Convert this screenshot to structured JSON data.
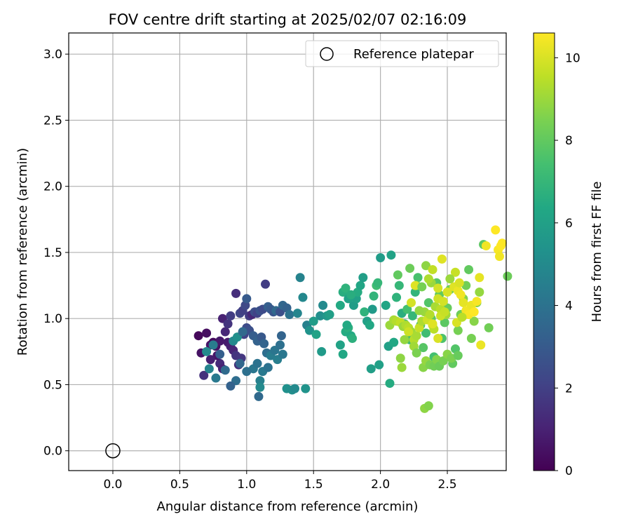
{
  "chart_data": {
    "type": "scatter",
    "title": "FOV centre drift starting at 2025/02/07 02:16:09",
    "xlabel": "Angular distance from reference (arcmin)",
    "ylabel": "Rotation from reference (arcmin)",
    "xlim": [
      -0.33,
      2.94
    ],
    "ylim": [
      -0.15,
      3.16
    ],
    "xticks": [
      "0.0",
      "0.5",
      "1.0",
      "1.5",
      "2.0",
      "2.5"
    ],
    "yticks": [
      "0.0",
      "0.5",
      "1.0",
      "1.5",
      "2.0",
      "2.5",
      "3.0"
    ],
    "grid": true,
    "legend": {
      "position": "top-right",
      "entries": [
        {
          "label": "Reference platepar",
          "marker": "open-circle"
        }
      ]
    },
    "reference_point": {
      "x": 0.0,
      "y": 0.0
    },
    "colorbar": {
      "label": "Hours from first FF file",
      "range": [
        0,
        10.6
      ],
      "ticks": [
        "0",
        "2",
        "4",
        "6",
        "8",
        "10"
      ],
      "colormap": "viridis"
    },
    "points": [
      [
        0.64,
        0.87,
        0.2
      ],
      [
        0.66,
        0.74,
        0.5
      ],
      [
        0.7,
        0.89,
        0.4
      ],
      [
        0.73,
        0.8,
        0.6
      ],
      [
        0.75,
        0.82,
        0.3
      ],
      [
        0.77,
        0.79,
        0.5
      ],
      [
        0.8,
        0.83,
        0.7
      ],
      [
        0.82,
        1.0,
        1.0
      ],
      [
        0.84,
        0.9,
        1.2
      ],
      [
        0.86,
        0.82,
        0.8
      ],
      [
        0.88,
        0.79,
        0.9
      ],
      [
        0.9,
        0.76,
        1.1
      ],
      [
        0.8,
        0.66,
        1.3
      ],
      [
        0.82,
        0.62,
        1.0
      ],
      [
        0.78,
        0.72,
        0.6
      ],
      [
        0.73,
        0.69,
        0.9
      ],
      [
        0.68,
        0.57,
        1.5
      ],
      [
        0.92,
        0.72,
        1.6
      ],
      [
        0.94,
        0.65,
        1.4
      ],
      [
        0.96,
        0.7,
        1.7
      ],
      [
        0.86,
        0.96,
        1.6
      ],
      [
        0.88,
        1.02,
        1.9
      ],
      [
        0.92,
        1.19,
        1.4
      ],
      [
        0.95,
        1.04,
        2.2
      ],
      [
        0.97,
        1.06,
        2.0
      ],
      [
        0.99,
        1.1,
        2.3
      ],
      [
        1.0,
        1.15,
        3.0
      ],
      [
        1.02,
        1.02,
        1.8
      ],
      [
        1.04,
        1.03,
        1.2
      ],
      [
        1.06,
        1.05,
        2.5
      ],
      [
        1.08,
        1.04,
        2.1
      ],
      [
        1.1,
        1.06,
        2.7
      ],
      [
        1.12,
        1.07,
        2.4
      ],
      [
        1.14,
        1.26,
        1.9
      ],
      [
        1.16,
        1.09,
        3.2
      ],
      [
        1.18,
        1.07,
        3.0
      ],
      [
        1.2,
        1.05,
        2.8
      ],
      [
        1.22,
        1.06,
        3.6
      ],
      [
        1.25,
        1.05,
        2.6
      ],
      [
        1.27,
        1.1,
        3.5
      ],
      [
        1.3,
        1.08,
        3.3
      ],
      [
        1.32,
        1.03,
        4.0
      ],
      [
        1.0,
        0.93,
        2.4
      ],
      [
        0.98,
        0.88,
        2.1
      ],
      [
        1.02,
        0.91,
        2.6
      ],
      [
        1.05,
        0.87,
        3.1
      ],
      [
        1.08,
        0.83,
        3.3
      ],
      [
        1.11,
        0.86,
        2.9
      ],
      [
        1.13,
        0.81,
        3.4
      ],
      [
        1.15,
        0.74,
        3.8
      ],
      [
        1.18,
        0.72,
        4.4
      ],
      [
        1.21,
        0.76,
        4.1
      ],
      [
        1.23,
        0.69,
        4.5
      ],
      [
        1.25,
        0.8,
        3.9
      ],
      [
        1.27,
        0.73,
        4.2
      ],
      [
        1.26,
        0.87,
        3.4
      ],
      [
        1.05,
        0.62,
        4.2
      ],
      [
        1.08,
        0.66,
        4.0
      ],
      [
        1.1,
        0.53,
        4.6
      ],
      [
        1.1,
        0.48,
        5.0
      ],
      [
        1.09,
        0.41,
        3.6
      ],
      [
        1.12,
        0.6,
        4.3
      ],
      [
        1.16,
        0.63,
        4.0
      ],
      [
        1.0,
        0.6,
        3.9
      ],
      [
        0.95,
        0.66,
        3.5
      ],
      [
        0.92,
        0.53,
        3.8
      ],
      [
        0.88,
        0.49,
        3.3
      ],
      [
        0.84,
        0.61,
        3.7
      ],
      [
        0.8,
        0.73,
        3.2
      ],
      [
        0.77,
        0.55,
        4.3
      ],
      [
        0.72,
        0.62,
        4.7
      ],
      [
        0.7,
        0.75,
        5.0
      ],
      [
        0.75,
        0.8,
        4.4
      ],
      [
        0.9,
        0.83,
        4.9
      ],
      [
        0.93,
        0.86,
        5.2
      ],
      [
        0.97,
        0.9,
        3.6
      ],
      [
        1.3,
        0.47,
        5.3
      ],
      [
        1.34,
        0.46,
        5.2
      ],
      [
        1.36,
        0.47,
        5.0
      ],
      [
        1.44,
        0.47,
        5.4
      ],
      [
        1.38,
        1.04,
        4.8
      ],
      [
        1.4,
        1.31,
        4.7
      ],
      [
        1.42,
        1.16,
        4.9
      ],
      [
        1.45,
        0.95,
        4.6
      ],
      [
        1.47,
        0.91,
        5.4
      ],
      [
        1.5,
        0.98,
        5.8
      ],
      [
        1.52,
        0.88,
        6.1
      ],
      [
        1.55,
        1.02,
        5.2
      ],
      [
        1.57,
        1.1,
        5.0
      ],
      [
        1.6,
        1.02,
        5.6
      ],
      [
        1.62,
        1.03,
        5.9
      ],
      [
        1.56,
        0.75,
        5.7
      ],
      [
        1.7,
        0.8,
        6.1
      ],
      [
        1.72,
        0.73,
        6.3
      ],
      [
        1.74,
        0.9,
        6.5
      ],
      [
        1.76,
        0.93,
        6.7
      ],
      [
        1.78,
        0.87,
        6.4
      ],
      [
        1.8,
        1.1,
        5.8
      ],
      [
        1.82,
        1.15,
        6.0
      ],
      [
        1.83,
        1.2,
        6.5
      ],
      [
        1.85,
        1.25,
        6.2
      ],
      [
        1.87,
        1.31,
        5.9
      ],
      [
        1.88,
        1.05,
        6.8
      ],
      [
        1.9,
        0.98,
        6.0
      ],
      [
        1.92,
        0.95,
        6.3
      ],
      [
        1.94,
        1.07,
        5.7
      ],
      [
        1.95,
        1.17,
        6.9
      ],
      [
        1.97,
        1.25,
        7.3
      ],
      [
        1.98,
        1.27,
        7.0
      ],
      [
        1.7,
        1.1,
        6.4
      ],
      [
        1.72,
        1.2,
        6.6
      ],
      [
        1.74,
        1.23,
        6.8
      ],
      [
        1.76,
        1.15,
        6.1
      ],
      [
        1.78,
        1.18,
        6.6
      ],
      [
        1.79,
        0.85,
        6.7
      ],
      [
        1.75,
        0.95,
        6.4
      ],
      [
        1.93,
        0.62,
        5.9
      ],
      [
        1.99,
        0.65,
        6.0
      ],
      [
        2.0,
        1.46,
        5.8
      ],
      [
        2.04,
        1.1,
        6.2
      ],
      [
        2.06,
        0.79,
        6.0
      ],
      [
        2.08,
        1.48,
        6.1
      ],
      [
        2.07,
        0.51,
        6.5
      ],
      [
        2.1,
        0.82,
        6.3
      ],
      [
        2.12,
        1.16,
        6.8
      ],
      [
        2.14,
        1.25,
        7.0
      ],
      [
        2.16,
        1.04,
        6.6
      ],
      [
        2.18,
        0.96,
        7.2
      ],
      [
        2.2,
        1.07,
        7.4
      ],
      [
        2.22,
        0.84,
        7.2
      ],
      [
        2.24,
        1.02,
        7.0
      ],
      [
        2.26,
        1.2,
        6.9
      ],
      [
        2.28,
        1.31,
        7.5
      ],
      [
        2.3,
        0.95,
        7.6
      ],
      [
        2.32,
        0.78,
        7.8
      ],
      [
        2.34,
        0.89,
        7.3
      ],
      [
        2.36,
        1.12,
        7.7
      ],
      [
        2.38,
        1.0,
        7.9
      ],
      [
        2.4,
        0.71,
        7.4
      ],
      [
        2.42,
        1.27,
        7.8
      ],
      [
        2.44,
        1.18,
        8.0
      ],
      [
        2.46,
        0.85,
        7.6
      ],
      [
        2.48,
        0.97,
        7.9
      ],
      [
        2.5,
        1.08,
        8.1
      ],
      [
        2.52,
        1.22,
        8.3
      ],
      [
        2.54,
        0.66,
        8.0
      ],
      [
        2.56,
        0.77,
        7.7
      ],
      [
        2.58,
        0.91,
        8.4
      ],
      [
        2.6,
        1.03,
        8.2
      ],
      [
        2.62,
        1.15,
        8.6
      ],
      [
        2.64,
        1.25,
        8.3
      ],
      [
        2.66,
        1.37,
        8.0
      ],
      [
        2.68,
        0.85,
        8.4
      ],
      [
        2.7,
        0.98,
        8.7
      ],
      [
        2.72,
        1.12,
        8.5
      ],
      [
        2.74,
        1.2,
        8.9
      ],
      [
        2.77,
        1.56,
        7.9
      ],
      [
        2.81,
        0.93,
        8.3
      ],
      [
        2.13,
        1.33,
        8.0
      ],
      [
        2.22,
        1.38,
        8.2
      ],
      [
        2.27,
        1.25,
        8.6
      ],
      [
        2.34,
        1.4,
        8.8
      ],
      [
        2.38,
        1.27,
        9.0
      ],
      [
        2.16,
        0.63,
        9.0
      ],
      [
        2.15,
        0.7,
        8.8
      ],
      [
        2.32,
        0.63,
        8.7
      ],
      [
        2.34,
        0.68,
        8.9
      ],
      [
        2.37,
        0.65,
        8.5
      ],
      [
        2.4,
        0.64,
        8.3
      ],
      [
        2.42,
        0.69,
        8.6
      ],
      [
        2.44,
        0.64,
        8.2
      ],
      [
        2.47,
        0.68,
        8.4
      ],
      [
        2.5,
        0.73,
        8.7
      ],
      [
        2.53,
        0.7,
        8.5
      ],
      [
        2.58,
        0.72,
        8.1
      ],
      [
        2.33,
        0.32,
        8.8
      ],
      [
        2.36,
        0.34,
        8.6
      ],
      [
        2.07,
        0.95,
        9.0
      ],
      [
        2.1,
        0.99,
        9.2
      ],
      [
        2.12,
        0.98,
        9.4
      ],
      [
        2.15,
        0.97,
        9.6
      ],
      [
        2.17,
        0.94,
        9.0
      ],
      [
        2.19,
        0.95,
        9.3
      ],
      [
        2.21,
        0.93,
        9.5
      ],
      [
        2.23,
        0.9,
        9.1
      ],
      [
        2.25,
        0.84,
        9.4
      ],
      [
        2.27,
        0.87,
        9.2
      ],
      [
        2.29,
        0.93,
        9.7
      ],
      [
        2.31,
        0.98,
        9.3
      ],
      [
        2.33,
        1.05,
        9.0
      ],
      [
        2.35,
        0.99,
        9.8
      ],
      [
        2.37,
        1.03,
        9.4
      ],
      [
        2.39,
        0.95,
        9.6
      ],
      [
        2.41,
        1.09,
        9.2
      ],
      [
        2.43,
        1.15,
        9.8
      ],
      [
        2.45,
        1.07,
        9.5
      ],
      [
        2.47,
        1.13,
        9.9
      ],
      [
        2.49,
        1.03,
        9.1
      ],
      [
        2.21,
        0.9,
        9.8
      ],
      [
        2.23,
        1.12,
        9.9
      ],
      [
        2.26,
        1.25,
        10.1
      ],
      [
        2.36,
        1.3,
        9.3
      ],
      [
        2.39,
        1.37,
        9.6
      ],
      [
        2.43,
        1.23,
        9.9
      ],
      [
        2.46,
        1.45,
        10.1
      ],
      [
        2.5,
        1.2,
        10.0
      ],
      [
        2.55,
        1.24,
        10.1
      ],
      [
        2.58,
        1.21,
        10.3
      ],
      [
        2.6,
        1.18,
        10.4
      ],
      [
        2.62,
        1.12,
        10.2
      ],
      [
        2.64,
        1.06,
        10.4
      ],
      [
        2.66,
        1.03,
        10.5
      ],
      [
        2.68,
        1.1,
        10.3
      ],
      [
        2.7,
        1.05,
        10.6
      ],
      [
        2.72,
        1.13,
        10.5
      ],
      [
        2.74,
        1.31,
        10.2
      ],
      [
        2.75,
        0.8,
        10.3
      ],
      [
        2.79,
        1.55,
        10.4
      ],
      [
        2.86,
        1.67,
        10.6
      ],
      [
        2.88,
        1.52,
        10.5
      ],
      [
        2.89,
        1.47,
        10.4
      ],
      [
        2.9,
        1.55,
        10.6
      ],
      [
        2.91,
        1.57,
        10.6
      ],
      [
        2.57,
        0.97,
        10.0
      ],
      [
        2.4,
        0.92,
        9.5
      ],
      [
        2.43,
        0.85,
        10.0
      ],
      [
        2.45,
        1.02,
        9.8
      ],
      [
        2.48,
        1.05,
        9.7
      ],
      [
        2.39,
        0.96,
        10.1
      ],
      [
        2.56,
        1.35,
        9.7
      ],
      [
        2.52,
        1.3,
        9.0
      ],
      [
        2.59,
        1.27,
        10.0
      ],
      [
        2.61,
        1.01,
        9.5
      ],
      [
        2.18,
        0.84,
        8.9
      ],
      [
        2.25,
        0.79,
        9.1
      ],
      [
        2.27,
        0.74,
        8.5
      ],
      [
        2.29,
        1.06,
        8.9
      ],
      [
        2.31,
        1.24,
        8.4
      ],
      [
        2.95,
        1.32,
        8.2
      ]
    ]
  }
}
